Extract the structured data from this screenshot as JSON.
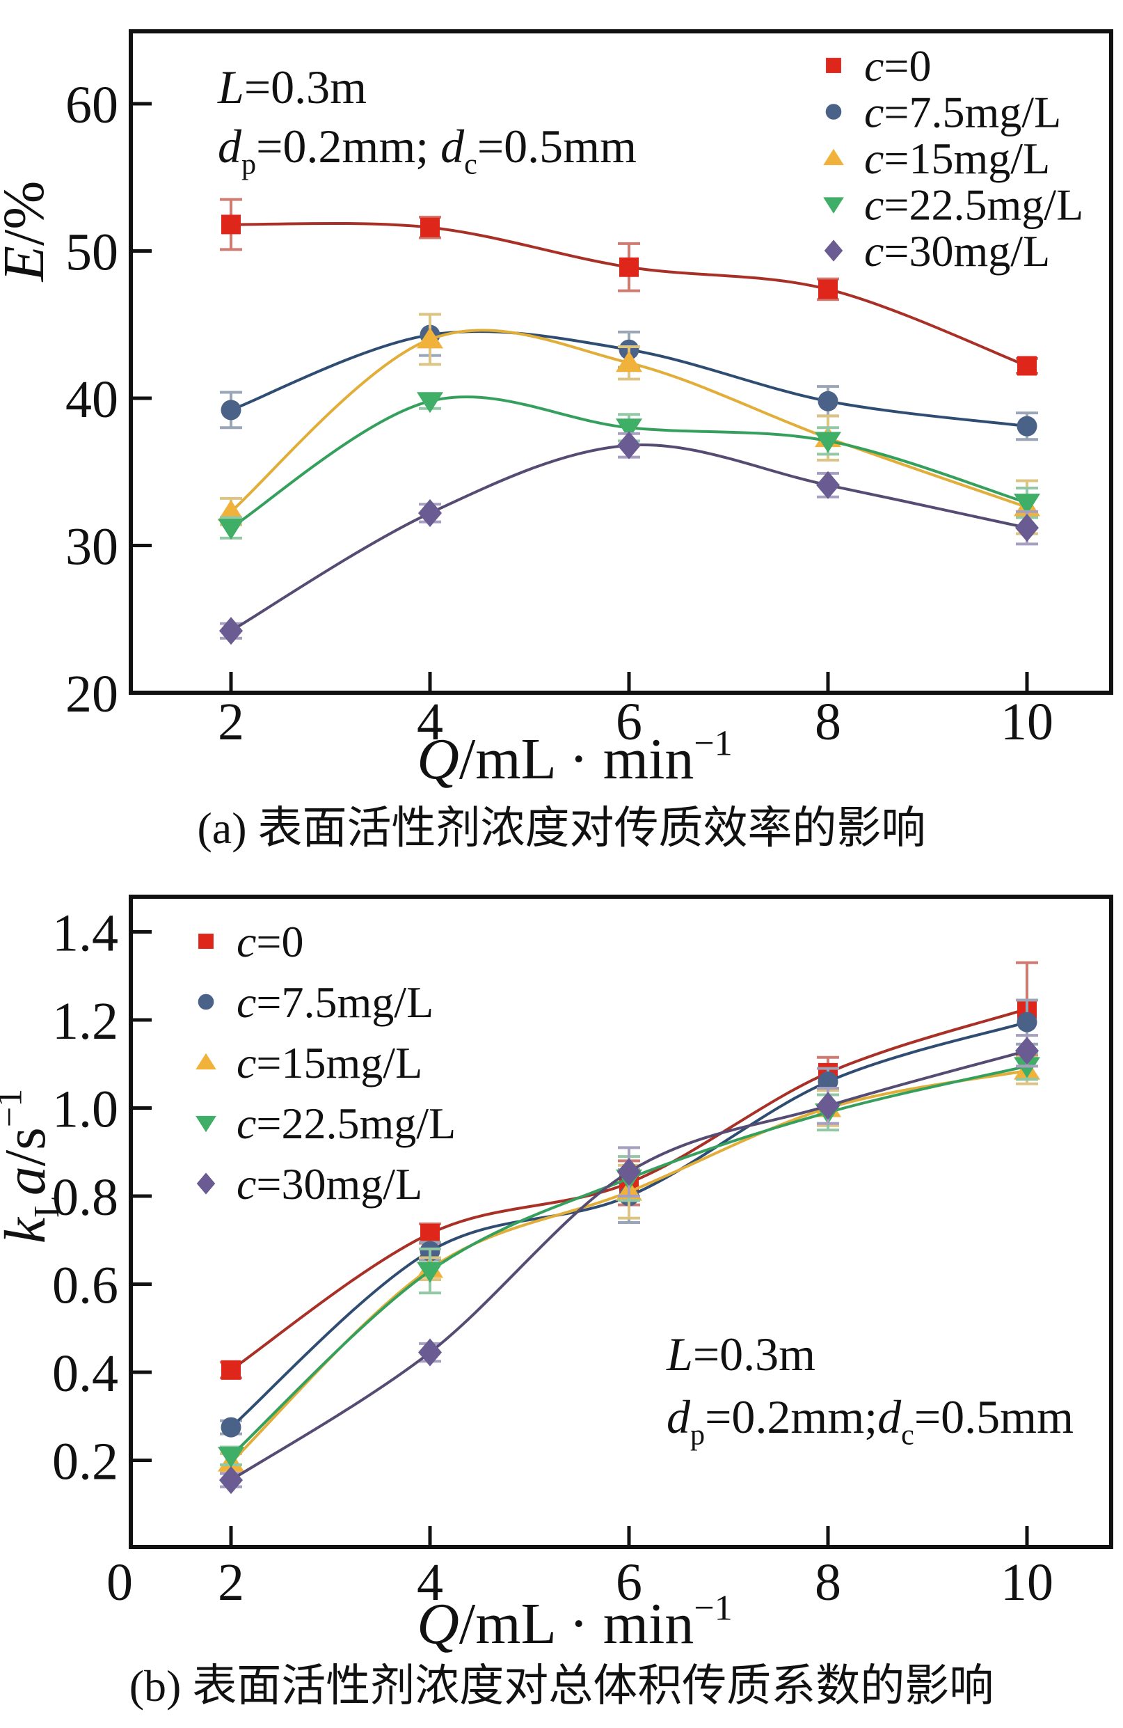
{
  "captions": {
    "a": "(a) 表面活性剂浓度对传质效率的影响",
    "b": "(b) 表面活性剂浓度对总体积传质系数的影响"
  },
  "chart_data": [
    {
      "id": "a",
      "type": "line",
      "caption_ref": "captions.a",
      "xlabel": [
        {
          "t": "Q",
          "it": true
        },
        {
          "t": "/mL · min"
        },
        {
          "t": "−1",
          "sup": true
        }
      ],
      "ylabel": [
        {
          "t": "E",
          "it": true
        },
        {
          "t": "/%"
        }
      ],
      "x": [
        2,
        4,
        6,
        8,
        10
      ],
      "x_tick_labels": [
        "2",
        "4",
        "6",
        "8",
        "10"
      ],
      "y_tick_values": [
        20,
        30,
        40,
        50,
        60
      ],
      "y_tick_labels": [
        "20",
        "30",
        "40",
        "50",
        "60"
      ],
      "xlim": [
        1.0,
        10.85
      ],
      "ylim": [
        20,
        64.9
      ],
      "grid": false,
      "legend_position": "top-right",
      "annotation": [
        [
          {
            "t": "L",
            "it": true
          },
          {
            "t": "=0.3m"
          }
        ],
        [
          {
            "t": "d",
            "it": true
          },
          {
            "t": "p",
            "sub": true
          },
          {
            "t": "=0.2mm; "
          },
          {
            "t": "d",
            "it": true
          },
          {
            "t": "c",
            "sub": true
          },
          {
            "t": "=0.5mm"
          }
        ]
      ],
      "series": [
        {
          "name": "c=0",
          "marker": "square",
          "marker_color": "#de261b",
          "line_color": "#a93026",
          "err_color": "#cf7b72",
          "values": [
            51.8,
            51.6,
            48.9,
            47.4,
            42.2
          ],
          "errors": [
            1.7,
            0.7,
            1.6,
            0.7,
            0.5
          ]
        },
        {
          "name": "c=7.5mg/L",
          "marker": "circle",
          "marker_color": "#4a6288",
          "line_color": "#2f4d72",
          "err_color": "#9aa6b8",
          "values": [
            39.2,
            44.3,
            43.3,
            39.8,
            38.1
          ],
          "errors": [
            1.2,
            1.4,
            1.2,
            1.0,
            0.9
          ]
        },
        {
          "name": "c=15mg/L",
          "marker": "triangle-up",
          "marker_color": "#f1b23b",
          "line_color": "#e2ae3a",
          "err_color": "#dcc584",
          "values": [
            32.3,
            44.0,
            42.4,
            37.3,
            32.6
          ],
          "errors": [
            0.9,
            1.7,
            1.1,
            1.5,
            1.8
          ]
        },
        {
          "name": "c=22.5mg/L",
          "marker": "triangle-down",
          "marker_color": "#3fae67",
          "line_color": "#35a05d",
          "err_color": "#92c8a5",
          "values": [
            31.2,
            39.8,
            38.0,
            37.1,
            32.9
          ],
          "errors": [
            0.7,
            0.5,
            0.9,
            0.9,
            1.0
          ]
        },
        {
          "name": "c=30mg/L",
          "marker": "diamond",
          "marker_color": "#6a5b92",
          "line_color": "#564b73",
          "err_color": "#a79fc0",
          "values": [
            24.2,
            32.2,
            36.8,
            34.1,
            31.2
          ],
          "errors": [
            0.5,
            0.6,
            0.8,
            0.8,
            1.1
          ]
        }
      ]
    },
    {
      "id": "b",
      "type": "line",
      "caption_ref": "captions.b",
      "xlabel": [
        {
          "t": "Q",
          "it": true
        },
        {
          "t": "/mL · min"
        },
        {
          "t": "−1",
          "sup": true
        }
      ],
      "ylabel": [
        {
          "t": "k",
          "it": true
        },
        {
          "t": "L",
          "sub": true
        },
        {
          "t": "a",
          "it": true
        },
        {
          "t": "/s"
        },
        {
          "t": "−1",
          "sup": true
        }
      ],
      "origin_label": "0",
      "x": [
        2,
        4,
        6,
        8,
        10
      ],
      "x_tick_labels": [
        "2",
        "4",
        "6",
        "8",
        "10"
      ],
      "y_tick_values": [
        0.2,
        0.4,
        0.6,
        0.8,
        1.0,
        1.2,
        1.4
      ],
      "y_tick_labels": [
        "0.2",
        "0.4",
        "0.6",
        "0.8",
        "1.0",
        "1.2",
        "1.4"
      ],
      "xlim": [
        1.0,
        10.85
      ],
      "ylim": [
        0,
        1.47
      ],
      "grid": false,
      "legend_position": "top-left",
      "annotation": [
        [
          {
            "t": "L",
            "it": true
          },
          {
            "t": "=0.3m"
          }
        ],
        [
          {
            "t": "d",
            "it": true
          },
          {
            "t": "p",
            "sub": true
          },
          {
            "t": "=0.2mm;"
          },
          {
            "t": "d",
            "it": true
          },
          {
            "t": "c",
            "sub": true
          },
          {
            "t": "=0.5mm"
          }
        ]
      ],
      "series": [
        {
          "name": "c=0",
          "marker": "square",
          "marker_color": "#de261b",
          "line_color": "#a93026",
          "err_color": "#cf7b72",
          "values": [
            0.405,
            0.715,
            0.83,
            1.08,
            1.225
          ],
          "errors": [
            0.018,
            0.022,
            0.05,
            0.035,
            0.105
          ]
        },
        {
          "name": "c=7.5mg/L",
          "marker": "circle",
          "marker_color": "#4a6288",
          "line_color": "#2f4d72",
          "err_color": "#9aa6b8",
          "values": [
            0.275,
            0.675,
            0.8,
            1.06,
            1.195
          ],
          "errors": [
            0.015,
            0.02,
            0.06,
            0.03,
            0.05
          ]
        },
        {
          "name": "c=15mg/L",
          "marker": "triangle-up",
          "marker_color": "#f1b23b",
          "line_color": "#e2ae3a",
          "err_color": "#dcc584",
          "values": [
            0.195,
            0.635,
            0.81,
            1.0,
            1.085
          ],
          "errors": [
            0.02,
            0.025,
            0.06,
            0.04,
            0.03
          ]
        },
        {
          "name": "c=22.5mg/L",
          "marker": "triangle-down",
          "marker_color": "#3fae67",
          "line_color": "#35a05d",
          "err_color": "#92c8a5",
          "values": [
            0.21,
            0.63,
            0.84,
            0.99,
            1.095
          ],
          "errors": [
            0.02,
            0.05,
            0.05,
            0.04,
            0.03
          ]
        },
        {
          "name": "c=30mg/L",
          "marker": "diamond",
          "marker_color": "#6a5b92",
          "line_color": "#564b73",
          "err_color": "#a79fc0",
          "values": [
            0.155,
            0.445,
            0.855,
            1.005,
            1.13
          ],
          "errors": [
            0.015,
            0.02,
            0.055,
            0.04,
            0.035
          ]
        }
      ]
    }
  ]
}
